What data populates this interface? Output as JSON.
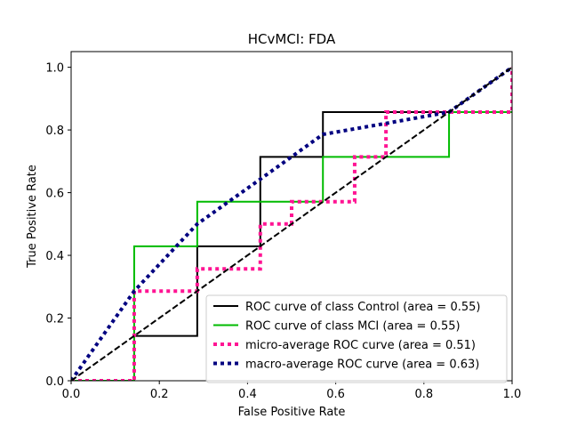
{
  "chart_data": {
    "type": "line",
    "title": "HCvMCI: FDA",
    "xlabel": "False Positive Rate",
    "ylabel": "True Positive Rate",
    "xlim": [
      0,
      1
    ],
    "ylim": [
      0,
      1.05
    ],
    "xticks": [
      "0.0",
      "0.2",
      "0.4",
      "0.6",
      "0.8",
      "1.0"
    ],
    "yticks": [
      "0.0",
      "0.2",
      "0.4",
      "0.6",
      "0.8",
      "1.0"
    ],
    "legend_position": "lower-right",
    "series": [
      {
        "name": "ROC curve of class  Control (area = 0.55)",
        "color": "#000000",
        "style": "solid",
        "x": [
          0,
          0.143,
          0.143,
          0.286,
          0.286,
          0.429,
          0.429,
          0.571,
          0.571,
          1.0
        ],
        "y": [
          0,
          0,
          0.143,
          0.143,
          0.429,
          0.429,
          0.714,
          0.714,
          0.857,
          0.857
        ]
      },
      {
        "name": "ROC curve of class  MCI (area = 0.55)",
        "color": "#00bb00",
        "style": "solid",
        "x": [
          0,
          0.143,
          0.143,
          0.286,
          0.286,
          0.571,
          0.571,
          0.857,
          0.857,
          1.0
        ],
        "y": [
          0,
          0,
          0.429,
          0.429,
          0.571,
          0.571,
          0.714,
          0.714,
          0.857,
          0.857
        ]
      },
      {
        "name": "micro-average ROC curve (area = 0.51)",
        "color": "#ff1493",
        "style": "dotted",
        "x": [
          0,
          0.143,
          0.143,
          0.286,
          0.286,
          0.429,
          0.429,
          0.5,
          0.5,
          0.643,
          0.643,
          0.714,
          0.714,
          1.0,
          1.0
        ],
        "y": [
          0,
          0,
          0.286,
          0.286,
          0.357,
          0.357,
          0.5,
          0.5,
          0.571,
          0.571,
          0.714,
          0.714,
          0.857,
          0.857,
          1.0
        ]
      },
      {
        "name": "macro-average ROC curve (area = 0.63)",
        "color": "#000080",
        "style": "dotted",
        "x": [
          0,
          0.143,
          0.286,
          0.429,
          0.571,
          0.714,
          0.857,
          1.0
        ],
        "y": [
          0,
          0.286,
          0.5,
          0.643,
          0.786,
          0.821,
          0.857,
          1.0
        ]
      },
      {
        "name": "",
        "color": "#000000",
        "style": "dashed",
        "x": [
          0,
          1
        ],
        "y": [
          0,
          1
        ]
      }
    ]
  }
}
